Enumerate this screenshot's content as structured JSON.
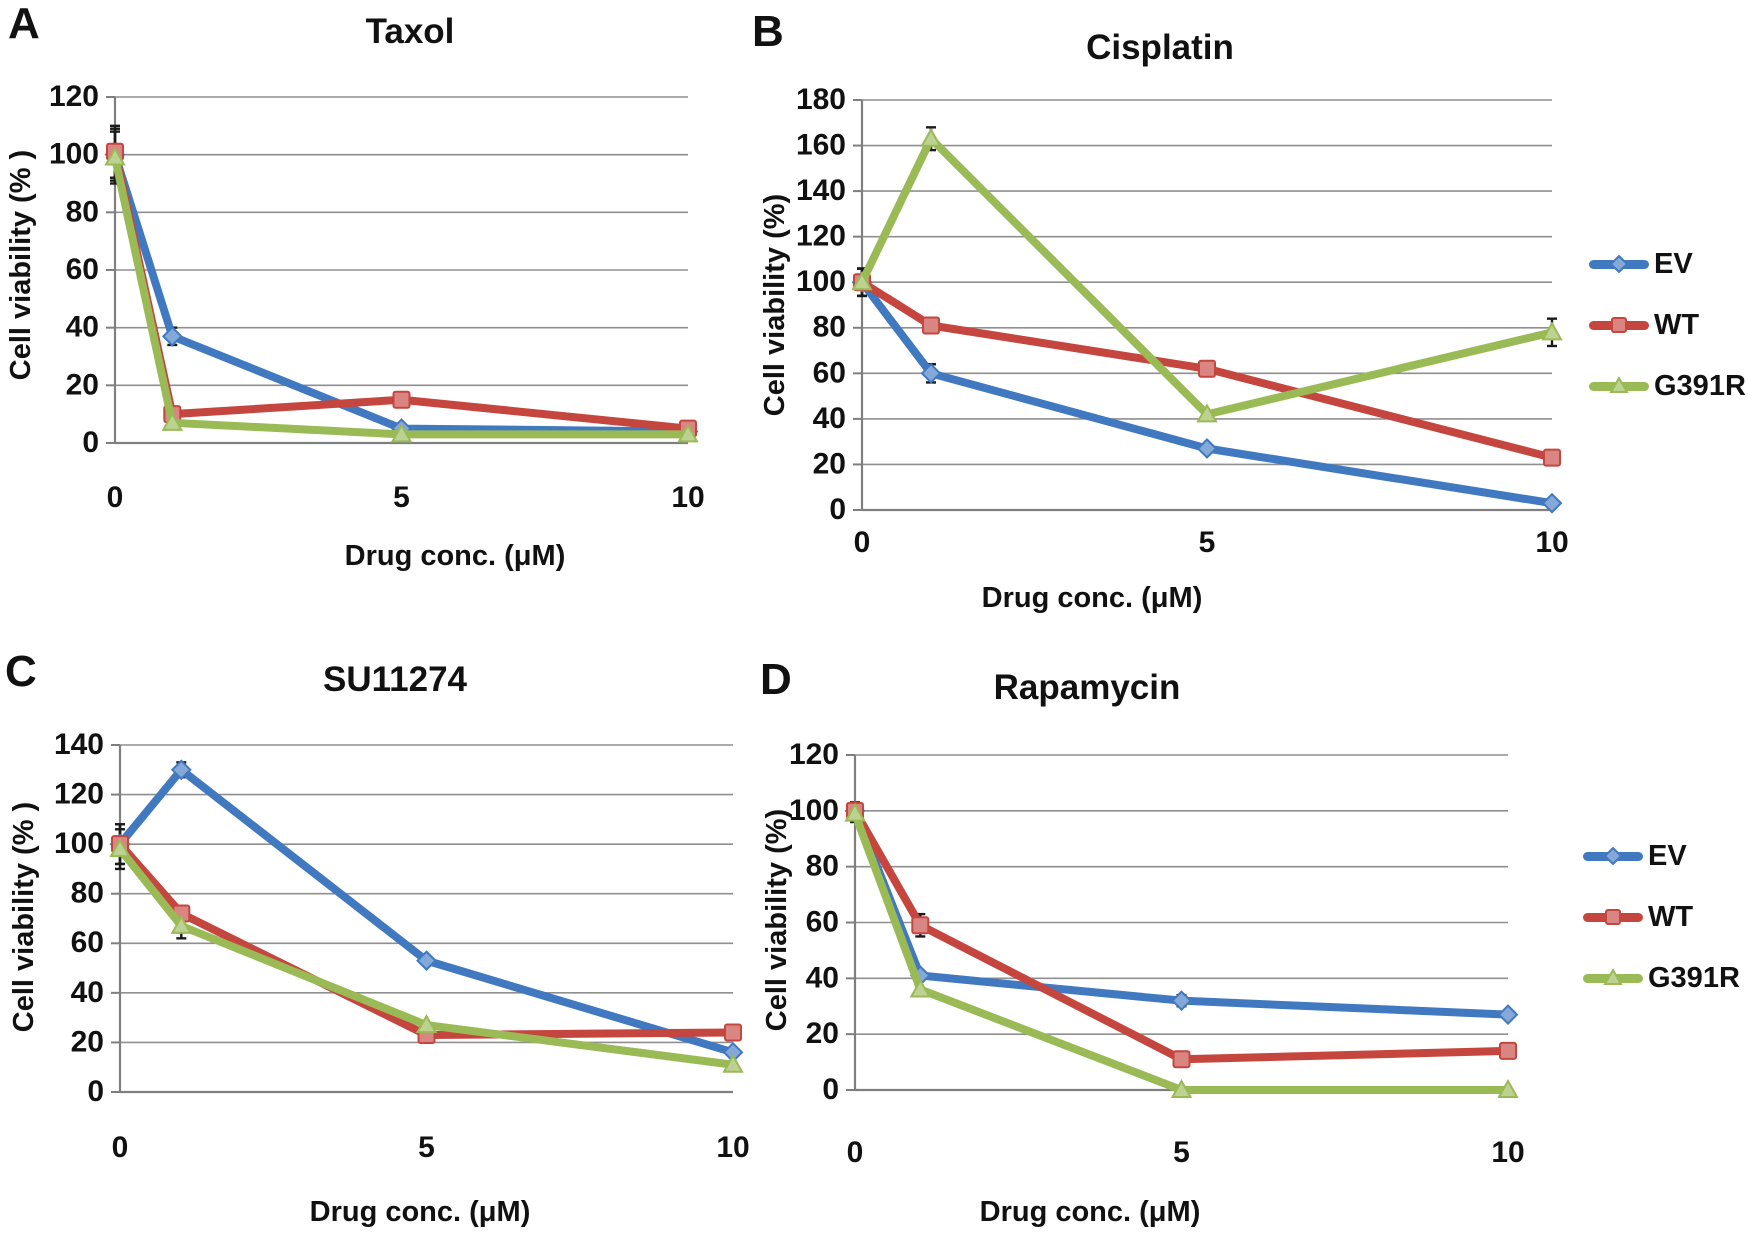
{
  "figure": {
    "series_colors": {
      "EV": "#4179c1",
      "WT": "#c5453f",
      "G391R": "#9aba56"
    },
    "grid_color": "#8f8f8f",
    "axis_color": "#7f7f7f",
    "error_bar_color": "#1a1a1a",
    "legend_entries": [
      "EV",
      "WT",
      "G391R"
    ]
  },
  "chart_data": [
    {
      "panel": "A",
      "type": "line",
      "title": "Taxol",
      "xlabel": "Drug conc. (μM)",
      "ylabel": "Cell viability (% )",
      "x": [
        0,
        1,
        5,
        10
      ],
      "xticks": [
        0,
        5,
        10
      ],
      "ylim": [
        0,
        120
      ],
      "ytick_step": 20,
      "grid": true,
      "legend": false,
      "series": [
        {
          "name": "EV",
          "marker": "diamond",
          "values": [
            100,
            37,
            5,
            4
          ],
          "err": [
            9,
            3,
            0,
            0
          ]
        },
        {
          "name": "WT",
          "marker": "square",
          "values": [
            101,
            10,
            15,
            5
          ],
          "err": [
            9,
            0,
            0,
            0
          ]
        },
        {
          "name": "G391R",
          "marker": "triangle",
          "values": [
            99,
            7,
            3,
            3
          ],
          "err": [
            9,
            0,
            0,
            0
          ]
        }
      ]
    },
    {
      "panel": "B",
      "type": "line",
      "title": "Cisplatin",
      "xlabel": "Drug conc. (μM)",
      "ylabel": "Cell viability (%)",
      "x": [
        0,
        1,
        5,
        10
      ],
      "xticks": [
        0,
        5,
        10
      ],
      "ylim": [
        0,
        180
      ],
      "ytick_step": 20,
      "grid": true,
      "legend": true,
      "series": [
        {
          "name": "EV",
          "marker": "diamond",
          "values": [
            100,
            60,
            27,
            3
          ],
          "err": [
            6,
            4,
            0,
            0
          ]
        },
        {
          "name": "WT",
          "marker": "square",
          "values": [
            100,
            81,
            62,
            23
          ],
          "err": [
            6,
            0,
            0,
            0
          ]
        },
        {
          "name": "G391R",
          "marker": "triangle",
          "values": [
            100,
            163,
            42,
            78
          ],
          "err": [
            6,
            5,
            0,
            6
          ]
        }
      ]
    },
    {
      "panel": "C",
      "type": "line",
      "title": "SU11274",
      "xlabel": "Drug conc. (μM)",
      "ylabel": "Cell viability (% )",
      "x": [
        0,
        1,
        5,
        10
      ],
      "xticks": [
        0,
        5,
        10
      ],
      "ylim": [
        0,
        140
      ],
      "ytick_step": 20,
      "grid": true,
      "legend": false,
      "series": [
        {
          "name": "EV",
          "marker": "diamond",
          "values": [
            100,
            130,
            53,
            16
          ],
          "err": [
            8,
            3,
            0,
            0
          ]
        },
        {
          "name": "WT",
          "marker": "square",
          "values": [
            100,
            72,
            23,
            24
          ],
          "err": [
            8,
            3,
            0,
            0
          ]
        },
        {
          "name": "G391R",
          "marker": "triangle",
          "values": [
            98,
            67,
            27,
            11
          ],
          "err": [
            8,
            5,
            0,
            0
          ]
        }
      ]
    },
    {
      "panel": "D",
      "type": "line",
      "title": "Rapamycin",
      "xlabel": "Drug conc. (μM)",
      "ylabel": "Cell viability (%)",
      "x": [
        0,
        1,
        5,
        10
      ],
      "xticks": [
        0,
        5,
        10
      ],
      "ylim": [
        0,
        120
      ],
      "ytick_step": 20,
      "grid": true,
      "legend": true,
      "series": [
        {
          "name": "EV",
          "marker": "diamond",
          "values": [
            100,
            41,
            32,
            27
          ],
          "err": [
            3,
            0,
            2,
            0
          ]
        },
        {
          "name": "WT",
          "marker": "square",
          "values": [
            100,
            59,
            11,
            14
          ],
          "err": [
            3,
            4,
            0,
            0
          ]
        },
        {
          "name": "G391R",
          "marker": "triangle",
          "values": [
            99,
            36,
            0,
            0
          ],
          "err": [
            3,
            0,
            0,
            0
          ]
        }
      ]
    }
  ]
}
